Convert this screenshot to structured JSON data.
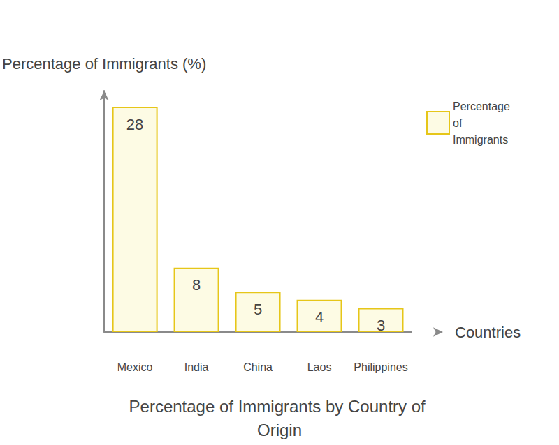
{
  "chart_data": {
    "type": "bar",
    "title": "Percentage of Immigrants by Country of Origin",
    "x_label": "Countries",
    "y_label": "Percentage of Immigrants (%)",
    "categories": [
      "Mexico",
      "India",
      "China",
      "Laos",
      "Philippines"
    ],
    "series": [
      {
        "name": "Percentage of Immigrants",
        "color": "#e6c619",
        "values": [
          28,
          8,
          5,
          4,
          3
        ]
      }
    ],
    "ylim": [
      0,
      30
    ],
    "tick_labels": "x",
    "data_labels": true,
    "legend": "upper right",
    "grid": false
  }
}
